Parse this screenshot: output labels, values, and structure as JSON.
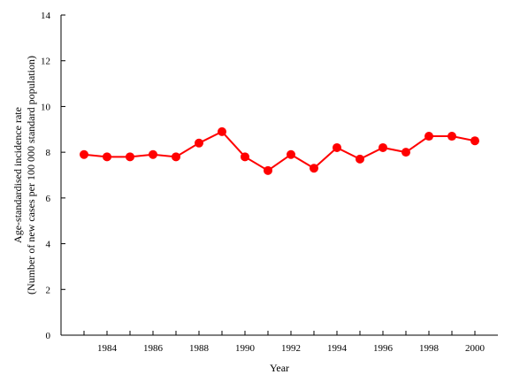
{
  "chart_data": {
    "type": "line",
    "xlabel": "Year",
    "ylabel_lines": [
      "Age-standardised incidence rate",
      "(Number of new cases per 100 000 standard population)"
    ],
    "x": [
      1983,
      1984,
      1985,
      1986,
      1987,
      1988,
      1989,
      1990,
      1991,
      1992,
      1993,
      1994,
      1995,
      1996,
      1997,
      1998,
      1999,
      2000
    ],
    "series": [
      {
        "values": [
          7.9,
          7.8,
          7.8,
          7.9,
          7.8,
          8.4,
          8.9,
          7.8,
          7.2,
          7.9,
          7.3,
          8.2,
          7.7,
          8.2,
          8.0,
          8.7,
          8.7,
          8.5
        ],
        "color": "#ff0000"
      }
    ],
    "xlim": [
      1982,
      2001
    ],
    "ylim": [
      0,
      14
    ],
    "x_ticks": [
      1984,
      1986,
      1988,
      1990,
      1992,
      1994,
      1996,
      1998,
      2000
    ],
    "y_ticks": [
      0,
      2,
      4,
      6,
      8,
      10,
      12,
      14
    ],
    "grid": false,
    "legend": "none"
  }
}
